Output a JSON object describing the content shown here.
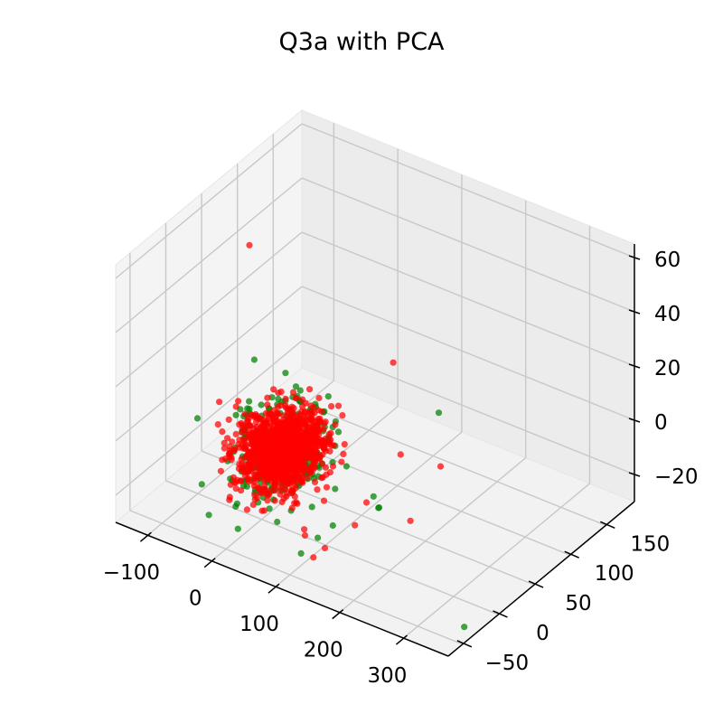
{
  "chart_data": {
    "type": "scatter",
    "projection": "3d",
    "title": "Q3a with PCA",
    "xlabel": "",
    "ylabel": "",
    "zlabel": "",
    "grid": true,
    "xlim": [
      -150,
      370
    ],
    "ylim": [
      -70,
      190
    ],
    "zlim": [
      -30,
      65
    ],
    "x_ticks": [
      -100,
      0,
      100,
      200,
      300
    ],
    "y_ticks": [
      -50,
      0,
      50,
      100,
      150
    ],
    "z_ticks": [
      -20,
      0,
      20,
      40,
      60
    ],
    "x_tick_labels": [
      "−100",
      "0",
      "100",
      "200",
      "300"
    ],
    "y_tick_labels": [
      "−50",
      "0",
      "50",
      "100",
      "150"
    ],
    "z_tick_labels": [
      "−20",
      "0",
      "20",
      "40",
      "60"
    ],
    "pane_color": "#f2f2f2",
    "grid_color": "#c8c8c8",
    "series": [
      {
        "color": "#008000",
        "center": [
          10,
          20,
          -8
        ],
        "spread": [
          28,
          22,
          7
        ],
        "count": 350,
        "points": [
          [
            367,
            -45,
            -25
          ],
          [
            150,
            30,
            -18
          ],
          [
            130,
            40,
            -18
          ],
          [
            -30,
            60,
            8
          ],
          [
            -90,
            70,
            5
          ],
          [
            15,
            30,
            10
          ],
          [
            60,
            -10,
            0
          ],
          [
            120,
            140,
            -10
          ],
          [
            110,
            -20,
            -22
          ],
          [
            100,
            10,
            -25
          ],
          [
            95,
            -30,
            -27
          ],
          [
            160,
            20,
            -15
          ]
        ]
      },
      {
        "color": "#ff0000",
        "center": [
          10,
          20,
          -8
        ],
        "spread": [
          26,
          20,
          6
        ],
        "count": 1100,
        "points": [
          [
            -120,
            90,
            40
          ],
          [
            175,
            -10,
            -5
          ],
          [
            140,
            5,
            -20
          ],
          [
            150,
            60,
            -5
          ],
          [
            110,
            -10,
            -28
          ],
          [
            120,
            -35,
            -25
          ],
          [
            190,
            80,
            -10
          ],
          [
            210,
            20,
            -15
          ],
          [
            60,
            130,
            5
          ],
          [
            90,
            -20,
            -23
          ],
          [
            80,
            40,
            -10
          ]
        ]
      }
    ]
  }
}
